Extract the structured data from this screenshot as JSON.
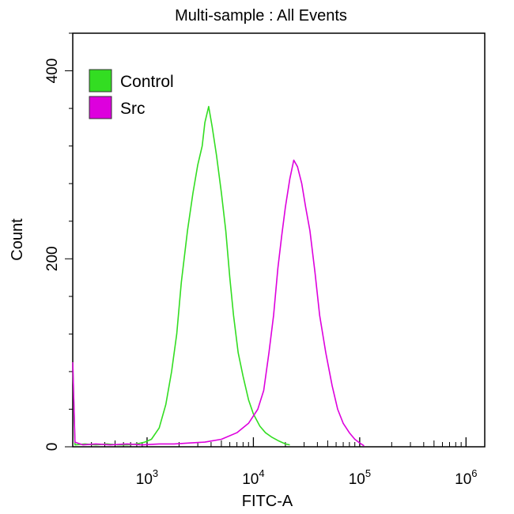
{
  "chart_data": {
    "type": "line",
    "title": "Multi-sample : All Events",
    "xlabel": "FITC-A",
    "ylabel": "Count",
    "x_scale": "log",
    "xlim": [
      200,
      1500000
    ],
    "ylim": [
      0,
      440
    ],
    "x_ticks": [
      {
        "value": 1000,
        "base": "10",
        "exp": "3"
      },
      {
        "value": 10000,
        "base": "10",
        "exp": "4"
      },
      {
        "value": 100000,
        "base": "10",
        "exp": "5"
      },
      {
        "value": 1000000,
        "base": "10",
        "exp": "6"
      }
    ],
    "y_ticks": [
      {
        "value": 0,
        "label": "0"
      },
      {
        "value": 200,
        "label": "200"
      },
      {
        "value": 400,
        "label": "400"
      }
    ],
    "grid": false,
    "legend": {
      "position": "top-left"
    },
    "series": [
      {
        "name": "Control",
        "color": "#33dd22",
        "points": [
          [
            200,
            90
          ],
          [
            210,
            2
          ],
          [
            260,
            3
          ],
          [
            330,
            2
          ],
          [
            420,
            3
          ],
          [
            530,
            2
          ],
          [
            650,
            2
          ],
          [
            800,
            3
          ],
          [
            950,
            5
          ],
          [
            1100,
            8
          ],
          [
            1300,
            20
          ],
          [
            1500,
            45
          ],
          [
            1700,
            80
          ],
          [
            1900,
            120
          ],
          [
            2100,
            175
          ],
          [
            2400,
            230
          ],
          [
            2700,
            270
          ],
          [
            3000,
            300
          ],
          [
            3300,
            320
          ],
          [
            3500,
            345
          ],
          [
            3800,
            362
          ],
          [
            4100,
            340
          ],
          [
            4500,
            310
          ],
          [
            5000,
            270
          ],
          [
            5500,
            230
          ],
          [
            6000,
            180
          ],
          [
            6500,
            140
          ],
          [
            7200,
            100
          ],
          [
            8000,
            75
          ],
          [
            9000,
            50
          ],
          [
            10000,
            35
          ],
          [
            11500,
            22
          ],
          [
            13000,
            15
          ],
          [
            15000,
            10
          ],
          [
            17500,
            6
          ],
          [
            20000,
            3
          ],
          [
            22000,
            2
          ]
        ]
      },
      {
        "name": "Src",
        "color": "#dd00dd",
        "points": [
          [
            200,
            90
          ],
          [
            210,
            5
          ],
          [
            250,
            2
          ],
          [
            330,
            3
          ],
          [
            450,
            2
          ],
          [
            650,
            3
          ],
          [
            900,
            2
          ],
          [
            1300,
            3
          ],
          [
            1800,
            3
          ],
          [
            2500,
            4
          ],
          [
            3500,
            5
          ],
          [
            5000,
            8
          ],
          [
            7000,
            15
          ],
          [
            9000,
            25
          ],
          [
            11000,
            40
          ],
          [
            12500,
            60
          ],
          [
            14000,
            100
          ],
          [
            15500,
            140
          ],
          [
            17000,
            190
          ],
          [
            18500,
            225
          ],
          [
            20000,
            255
          ],
          [
            22000,
            285
          ],
          [
            24000,
            305
          ],
          [
            26000,
            298
          ],
          [
            28500,
            280
          ],
          [
            31000,
            255
          ],
          [
            34000,
            230
          ],
          [
            38000,
            185
          ],
          [
            42000,
            140
          ],
          [
            48000,
            100
          ],
          [
            55000,
            65
          ],
          [
            62000,
            40
          ],
          [
            70000,
            25
          ],
          [
            80000,
            15
          ],
          [
            90000,
            8
          ],
          [
            100000,
            4
          ],
          [
            110000,
            1
          ]
        ]
      }
    ]
  }
}
